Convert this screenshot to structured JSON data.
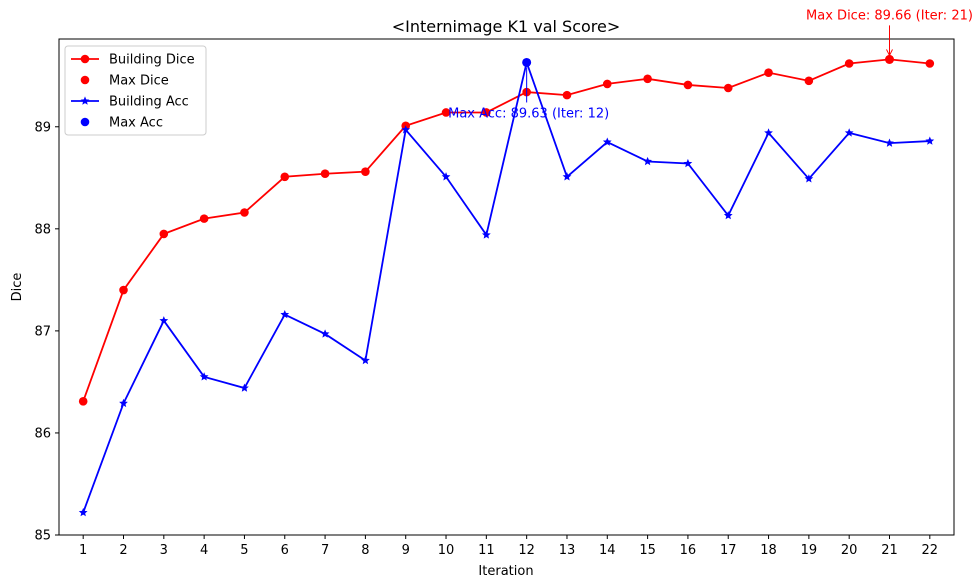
{
  "chart_data": {
    "type": "line",
    "title": "<Internimage K1 val Score>",
    "xlabel": "Iteration",
    "ylabel": "Dice",
    "x": [
      1,
      2,
      3,
      4,
      5,
      6,
      7,
      8,
      9,
      10,
      11,
      12,
      13,
      14,
      15,
      16,
      17,
      18,
      19,
      20,
      21,
      22
    ],
    "xlim": [
      0.4,
      22.6
    ],
    "ylim": [
      85,
      89.86
    ],
    "yticks": [
      85,
      86,
      87,
      88,
      89
    ],
    "grid": false,
    "legend_position": "top-left",
    "series": [
      {
        "name": "Building Dice",
        "color": "#ff0000",
        "marker": "circle",
        "values": [
          86.31,
          87.4,
          87.95,
          88.1,
          88.16,
          88.51,
          88.54,
          88.56,
          89.01,
          89.14,
          89.14,
          89.34,
          89.31,
          89.42,
          89.47,
          89.41,
          89.38,
          89.53,
          89.45,
          89.62,
          89.66,
          89.62
        ]
      },
      {
        "name": "Building Acc",
        "color": "#0000ff",
        "marker": "star",
        "values": [
          85.22,
          86.29,
          87.1,
          86.55,
          86.44,
          87.16,
          86.97,
          86.71,
          88.97,
          88.51,
          87.94,
          89.63,
          88.51,
          88.85,
          88.66,
          88.64,
          88.13,
          88.94,
          88.49,
          88.94,
          88.84,
          88.86
        ]
      }
    ],
    "max_points": [
      {
        "name": "Max Dice",
        "color": "#ff0000",
        "x": 21,
        "y": 89.66,
        "label": "Max Dice: 89.66 (Iter: 21)"
      },
      {
        "name": "Max Acc",
        "color": "#0000ff",
        "x": 12,
        "y": 89.63,
        "label": "Max Acc: 89.63 (Iter: 12)"
      }
    ]
  }
}
